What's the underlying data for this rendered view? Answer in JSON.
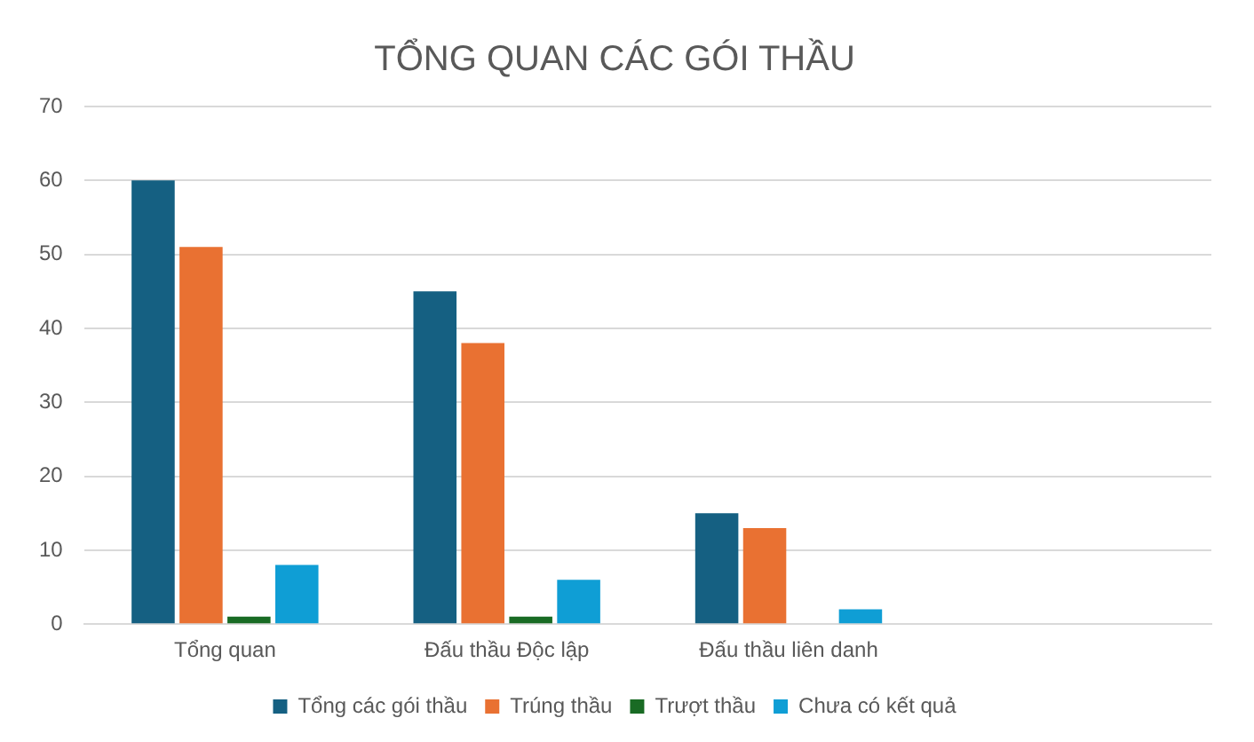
{
  "chart_data": {
    "type": "bar",
    "title": "TỔNG QUAN CÁC GÓI THẦU",
    "categories": [
      "Tổng quan",
      "Đấu thầu Độc lập",
      "Đấu thầu liên danh",
      null
    ],
    "series": [
      {
        "name": "Tổng các gói thầu",
        "color": "#156082",
        "values": [
          60,
          45,
          15,
          null
        ]
      },
      {
        "name": "Trúng thầu",
        "color": "#e97132",
        "values": [
          51,
          38,
          13,
          null
        ]
      },
      {
        "name": "Trượt thầu",
        "color": "#196b24",
        "values": [
          1,
          1,
          0,
          null
        ]
      },
      {
        "name": "Chưa có kết quả",
        "color": "#0f9ed5",
        "values": [
          8,
          6,
          2,
          null
        ]
      }
    ],
    "ylim": [
      0,
      70
    ],
    "yticks": [
      0,
      10,
      20,
      30,
      40,
      50,
      60,
      70
    ],
    "grid": "y",
    "legend": "bottom"
  }
}
